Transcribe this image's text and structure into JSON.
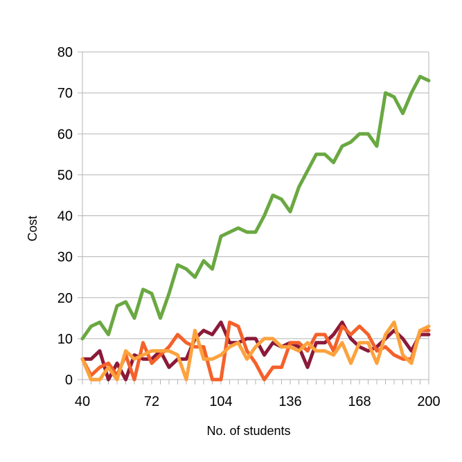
{
  "chart_data": {
    "type": "line",
    "title": "",
    "xlabel": "No. of students",
    "ylabel": "Cost",
    "xlim": [
      40,
      200
    ],
    "ylim": [
      0,
      80
    ],
    "x_tick_labels": [
      "40",
      "72",
      "104",
      "136",
      "168",
      "200"
    ],
    "x_tick_values": [
      40,
      72,
      104,
      136,
      168,
      200
    ],
    "y_tick_labels": [
      "0",
      "10",
      "20",
      "30",
      "40",
      "50",
      "60",
      "70",
      "80"
    ],
    "y_tick_values": [
      0,
      10,
      20,
      30,
      40,
      50,
      60,
      70,
      80
    ],
    "grid": true,
    "legend": "none",
    "x": [
      40,
      44,
      48,
      52,
      56,
      60,
      64,
      68,
      72,
      76,
      80,
      84,
      88,
      92,
      96,
      100,
      104,
      108,
      112,
      116,
      120,
      124,
      128,
      132,
      136,
      140,
      144,
      148,
      152,
      156,
      160,
      164,
      168,
      172,
      176,
      180,
      184,
      188,
      192,
      196,
      200
    ],
    "series": [
      {
        "color": "#6aa842",
        "values": [
          10,
          13,
          14,
          11,
          18,
          19,
          15,
          22,
          21,
          15,
          21,
          28,
          27,
          25,
          29,
          27,
          35,
          36,
          37,
          36,
          36,
          40,
          45,
          44,
          41,
          47,
          51,
          55,
          55,
          53,
          57,
          58,
          60,
          60,
          57,
          70,
          69,
          65,
          70,
          74,
          73
        ]
      },
      {
        "color": "#8b1a3a",
        "values": [
          5,
          5,
          7,
          0,
          4,
          0,
          6,
          5,
          5,
          7,
          3,
          5,
          5,
          10,
          12,
          11,
          14,
          9,
          9,
          10,
          10,
          6,
          9,
          8,
          9,
          8,
          3,
          9,
          9,
          11,
          14,
          10,
          8,
          7,
          8,
          10,
          12,
          10,
          7,
          11,
          11
        ]
      },
      {
        "color": "#f4612a",
        "values": [
          5,
          1,
          3,
          4,
          1,
          6,
          0,
          9,
          4,
          6,
          8,
          11,
          9,
          8,
          8,
          0,
          0,
          14,
          13,
          7,
          4,
          0,
          3,
          3,
          9,
          9,
          7,
          11,
          11,
          7,
          13,
          11,
          13,
          11,
          7,
          8,
          6,
          5,
          5,
          12,
          12
        ]
      },
      {
        "color": "#fca23d",
        "values": [
          5,
          0,
          0,
          3,
          0,
          7,
          5,
          6,
          7,
          7,
          7,
          6,
          0,
          12,
          5,
          5,
          6,
          8,
          9,
          5,
          8,
          10,
          10,
          8,
          8,
          7,
          9,
          7,
          7,
          6,
          9,
          4,
          9,
          9,
          4,
          11,
          14,
          6,
          4,
          12,
          13
        ]
      }
    ]
  }
}
